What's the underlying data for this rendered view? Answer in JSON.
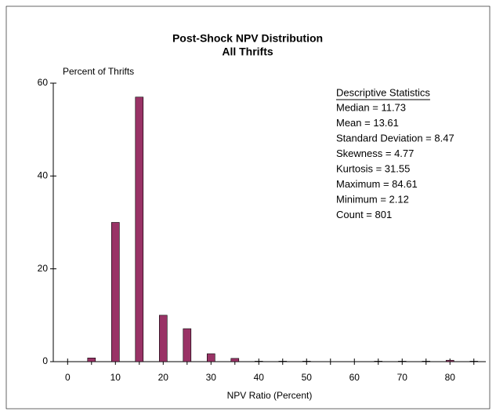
{
  "chart_data": {
    "type": "bar",
    "title": "Post-Shock NPV Distribution",
    "subtitle": "All Thrifts",
    "y_label": "Percent of Thrifts",
    "x_label": "NPV Ratio (Percent)",
    "x": [
      5,
      10,
      15,
      20,
      25,
      30,
      35,
      40,
      45,
      50,
      65,
      70,
      75,
      80,
      85
    ],
    "values": [
      0.8,
      30,
      57,
      10,
      7.1,
      1.7,
      0.7,
      0.1,
      0.1,
      0.1,
      0.1,
      0.1,
      0.1,
      0.3,
      0.1
    ],
    "color": "#993366",
    "xlim": [
      -3,
      87.5
    ],
    "ylim": [
      0,
      60
    ],
    "xticks": [
      0,
      10,
      20,
      30,
      40,
      50,
      60,
      70,
      80
    ],
    "xminor_ticks": [
      5,
      15,
      25,
      35,
      45,
      55,
      65,
      75,
      85
    ],
    "yticks": [
      0,
      20,
      40,
      60
    ],
    "grid": false,
    "annotations": {
      "heading": "Descriptive Statistics",
      "lines": [
        "Median = 11.73",
        "Mean = 13.61",
        "Standard Deviation = 8.47",
        "Skewness = 4.77",
        "Kurtosis = 31.55",
        "Maximum = 84.61",
        "Minimum = 2.12",
        "Count = 801"
      ]
    }
  }
}
